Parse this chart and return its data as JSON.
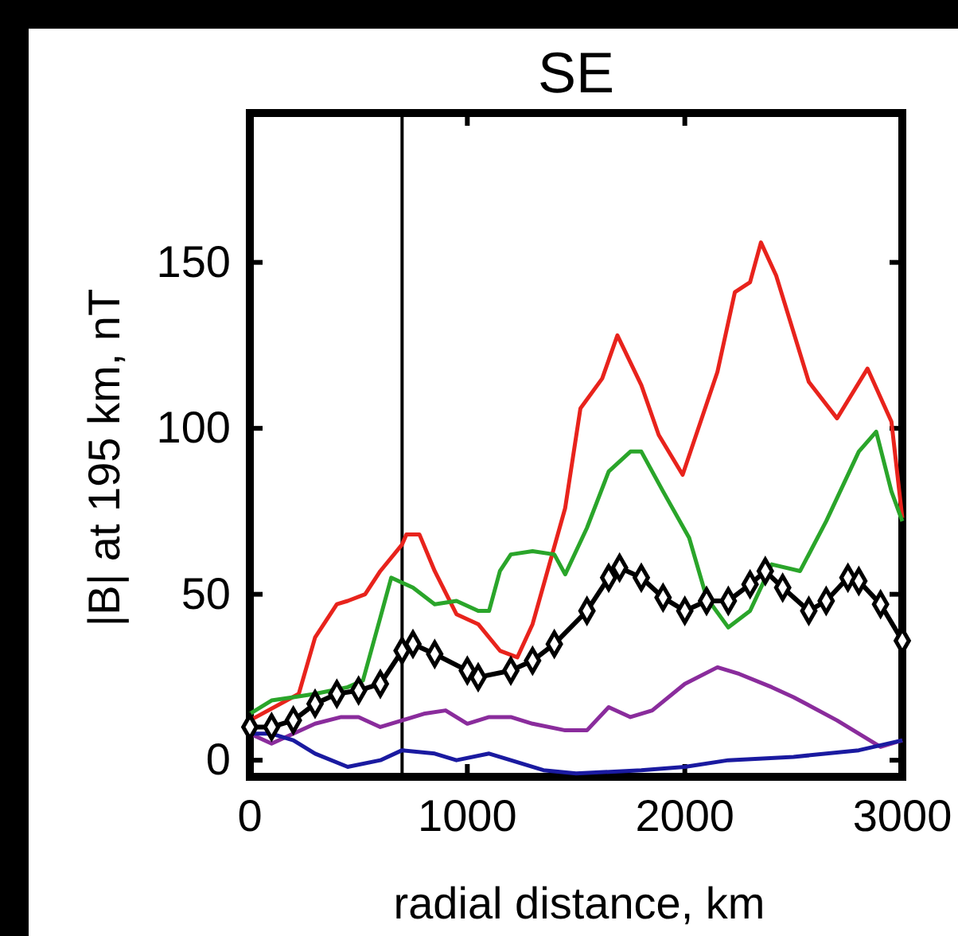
{
  "chart_data": {
    "type": "line",
    "title": "SE",
    "xlabel": "radial distance, km",
    "ylabel": "|B| at 195 km, nT",
    "xlim": [
      0,
      3000
    ],
    "ylim": [
      -5,
      195
    ],
    "xticks": [
      0,
      1000,
      2000,
      3000
    ],
    "yticks": [
      0,
      50,
      100,
      150
    ],
    "grid": false,
    "ref_lines": [
      {
        "axis": "x",
        "value": 700,
        "color": "#000000"
      }
    ],
    "series": [
      {
        "color": "#e8231c",
        "x": [
          0,
          225,
          300,
          400,
          450,
          530,
          600,
          700,
          720,
          780,
          850,
          950,
          1050,
          1150,
          1230,
          1300,
          1450,
          1520,
          1620,
          1690,
          1800,
          1880,
          1990,
          2150,
          2230,
          2300,
          2350,
          2420,
          2570,
          2700,
          2840,
          2950,
          3000
        ],
        "values": [
          12,
          20,
          37,
          47,
          48,
          50,
          57,
          65,
          68,
          68,
          57,
          44,
          41,
          33,
          31,
          41,
          76,
          106,
          115,
          128,
          113,
          98,
          86,
          117,
          141,
          144,
          156,
          146,
          114,
          103,
          118,
          102,
          73
        ]
      },
      {
        "color": "#2aa52a",
        "x": [
          0,
          100,
          200,
          300,
          450,
          520,
          600,
          650,
          750,
          850,
          950,
          1050,
          1100,
          1150,
          1200,
          1300,
          1400,
          1450,
          1550,
          1650,
          1750,
          1800,
          1900,
          2020,
          2100,
          2200,
          2300,
          2400,
          2530,
          2650,
          2800,
          2880,
          2950,
          3000
        ],
        "values": [
          14,
          18,
          19,
          20,
          22,
          24,
          43,
          55,
          52,
          47,
          48,
          45,
          45,
          57,
          62,
          63,
          62,
          56,
          70,
          87,
          93,
          93,
          81,
          67,
          49,
          40,
          45,
          59,
          57,
          72,
          93,
          99,
          81,
          72
        ]
      },
      {
        "color": "#8a2c9c",
        "x": [
          0,
          100,
          200,
          300,
          420,
          500,
          600,
          700,
          800,
          900,
          1000,
          1100,
          1200,
          1300,
          1450,
          1550,
          1650,
          1750,
          1850,
          2000,
          2150,
          2250,
          2400,
          2500,
          2700,
          2900,
          3000
        ],
        "values": [
          8,
          5,
          8,
          11,
          13,
          13,
          10,
          12,
          14,
          15,
          11,
          13,
          13,
          11,
          9,
          9,
          16,
          13,
          15,
          23,
          28,
          26,
          22,
          19,
          12,
          4,
          6
        ]
      },
      {
        "color": "#1a1aa0",
        "x": [
          0,
          100,
          200,
          300,
          450,
          600,
          700,
          850,
          950,
          1100,
          1200,
          1350,
          1500,
          1800,
          2000,
          2200,
          2500,
          2800,
          3000
        ],
        "values": [
          8,
          8,
          6,
          2,
          -2,
          0,
          3,
          2,
          0,
          2,
          0,
          -3,
          -4,
          -3,
          -2,
          0,
          1,
          3,
          6
        ]
      },
      {
        "color": "#000000",
        "marker": "diamond",
        "x": [
          0,
          100,
          200,
          300,
          400,
          500,
          600,
          700,
          750,
          850,
          1000,
          1050,
          1200,
          1300,
          1400,
          1550,
          1650,
          1700,
          1800,
          1900,
          2000,
          2100,
          2200,
          2300,
          2370,
          2450,
          2570,
          2650,
          2750,
          2800,
          2900,
          3000
        ],
        "values": [
          10,
          10,
          12,
          17,
          20,
          21,
          23,
          33,
          35,
          32,
          27,
          25,
          27,
          30,
          35,
          45,
          55,
          58,
          55,
          49,
          45,
          48,
          48,
          53,
          57,
          52,
          45,
          48,
          55,
          54,
          47,
          36
        ]
      }
    ]
  }
}
